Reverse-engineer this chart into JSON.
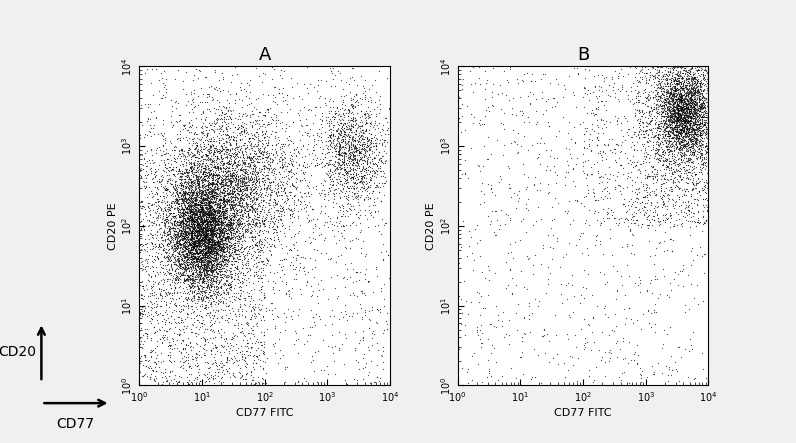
{
  "title_A": "A",
  "title_B": "B",
  "xlabel": "CD77 FITC",
  "ylabel": "CD20 PE",
  "label_cd20": "CD20",
  "label_cd77": "CD77",
  "background_color": "#f0f0f0",
  "plot_bg": "#ffffff",
  "dot_color": "#000000",
  "n_points_A": 12000,
  "n_points_B": 5000,
  "seed_A": 42,
  "seed_B": 99
}
